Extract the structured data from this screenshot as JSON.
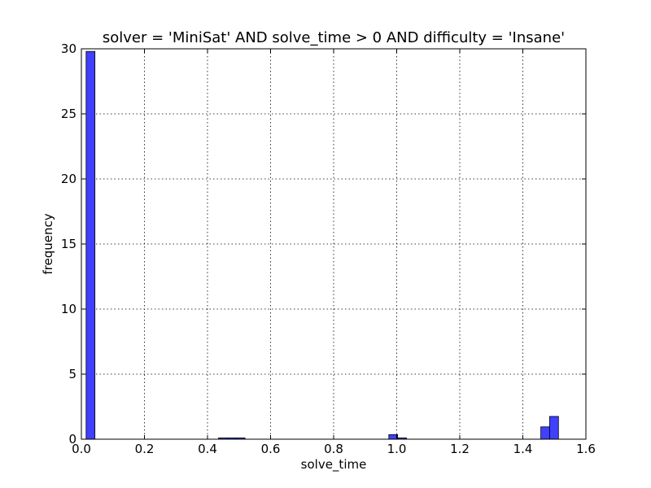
{
  "chart_data": {
    "type": "bar",
    "title": "solver = 'MiniSat' AND solve_time > 0 AND difficulty = 'Insane'",
    "xlabel": "solve_time",
    "ylabel": "frequency",
    "xlim": [
      0.0,
      1.6
    ],
    "ylim": [
      0,
      30
    ],
    "xticks": [
      "0.0",
      "0.2",
      "0.4",
      "0.6",
      "0.8",
      "1.0",
      "1.2",
      "1.4",
      "1.6"
    ],
    "yticks": [
      "0",
      "5",
      "10",
      "15",
      "20",
      "25",
      "30"
    ],
    "grid": true,
    "bar_color": "#4040ff",
    "bins": [
      {
        "x0": 0.015,
        "x1": 0.043,
        "value": 29.8
      },
      {
        "x0": 0.435,
        "x1": 0.463,
        "value": 0.1
      },
      {
        "x0": 0.463,
        "x1": 0.491,
        "value": 0.1
      },
      {
        "x0": 0.491,
        "x1": 0.519,
        "value": 0.1
      },
      {
        "x0": 0.975,
        "x1": 1.003,
        "value": 0.35
      },
      {
        "x0": 1.003,
        "x1": 1.031,
        "value": 0.1
      },
      {
        "x0": 1.457,
        "x1": 1.485,
        "value": 0.95
      },
      {
        "x0": 1.485,
        "x1": 1.513,
        "value": 1.75
      }
    ]
  }
}
